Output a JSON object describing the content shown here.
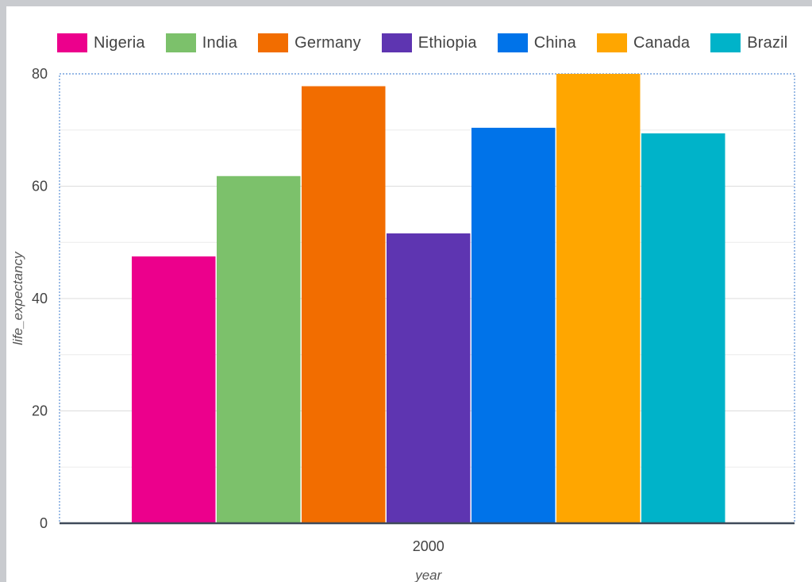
{
  "chart_data": {
    "type": "bar",
    "categories": [
      "2000"
    ],
    "series": [
      {
        "name": "Nigeria",
        "values": [
          47.5
        ],
        "color": "#ec008c"
      },
      {
        "name": "India",
        "values": [
          61.8
        ],
        "color": "#7cc16b"
      },
      {
        "name": "Germany",
        "values": [
          77.8
        ],
        "color": "#f26d00"
      },
      {
        "name": "Ethiopia",
        "values": [
          51.6
        ],
        "color": "#5e35b1"
      },
      {
        "name": "China",
        "values": [
          70.4
        ],
        "color": "#0073e9"
      },
      {
        "name": "Canada",
        "values": [
          80.0
        ],
        "color": "#ffa600"
      },
      {
        "name": "Brazil",
        "values": [
          69.4
        ],
        "color": "#00b3c9"
      }
    ],
    "xlabel": "year",
    "ylabel": "life_expectancy",
    "ylim": [
      0,
      80
    ],
    "yticks": [
      0,
      20,
      40,
      60,
      80
    ],
    "grid": true,
    "legend_position": "top"
  }
}
